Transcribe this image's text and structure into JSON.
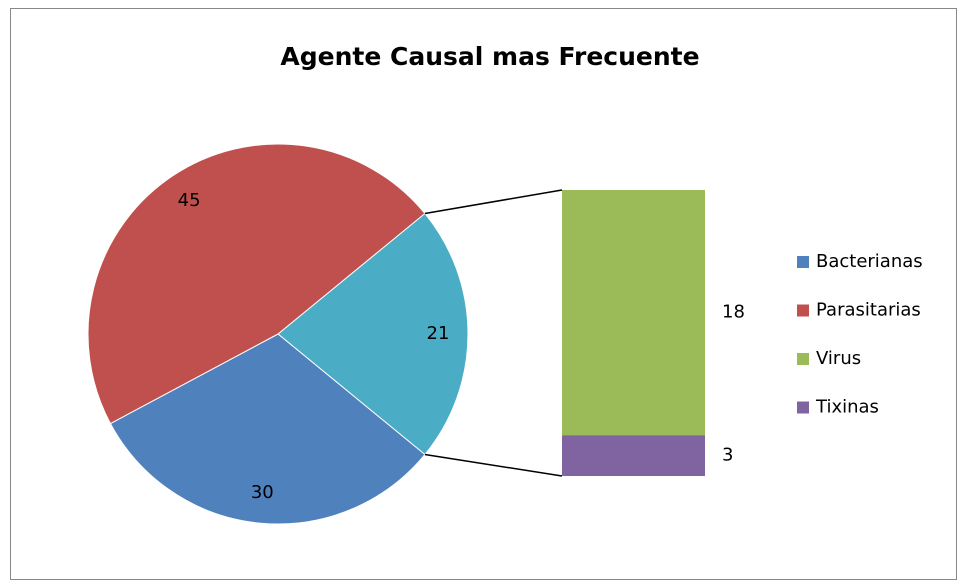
{
  "chart_data": {
    "type": "bar_of_pie",
    "title": "Agente Causal mas Frecuente",
    "series": [
      {
        "name": "Bacterianas",
        "value": 30,
        "color": "#4f81bd",
        "plot": "pie"
      },
      {
        "name": "Parasitarias",
        "value": 45,
        "color": "#c0504d",
        "plot": "pie"
      },
      {
        "name": "Virus",
        "value": 18,
        "color": "#9bbb59",
        "plot": "bar"
      },
      {
        "name": "Tixinas",
        "value": 3,
        "color": "#8064a2",
        "plot": "bar"
      }
    ],
    "other": {
      "value": 21,
      "color": "#4bacc6"
    },
    "legend": "right"
  }
}
